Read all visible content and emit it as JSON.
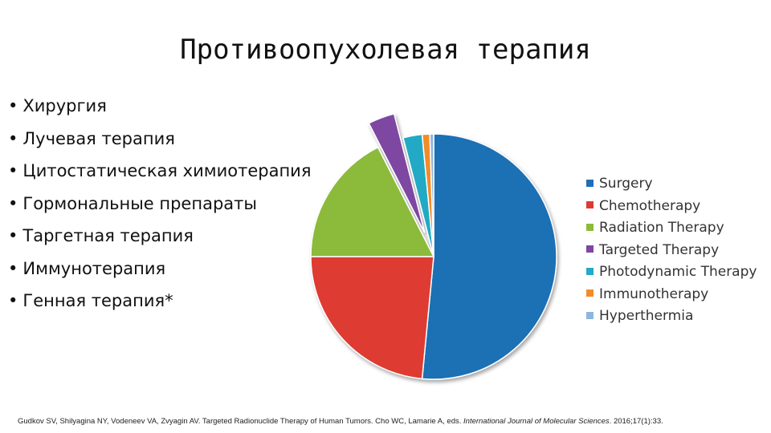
{
  "slide": {
    "title": "Противоопухолевая терапия",
    "bullets": [
      "Хирургия",
      "Лучевая терапия",
      "Цитостатическая химиотерапия",
      "Гормональные препараты",
      "Таргетная терапия",
      "Иммунотерапия",
      "Генная терапия*"
    ],
    "citation": {
      "authors": "Gudkov SV, Shilyagina NY, Vodeneev VA, Zvyagin AV. Targeted Radionuclide Therapy of Human Tumors. Cho WC, Lamarie A, eds. ",
      "journal": "International Journal of Molecular Sciences",
      "details": ". 2016;17(1):33."
    }
  },
  "chart_data": {
    "type": "pie",
    "title": "",
    "legend_position": "right",
    "exploded": [
      "Targeted Therapy"
    ],
    "slices": [
      {
        "label": "Surgery",
        "value": 51.5,
        "color": "#1f6fb4"
      },
      {
        "label": "Chemotherapy",
        "value": 23.5,
        "color": "#de3a33"
      },
      {
        "label": "Radiation Therapy",
        "value": 17.5,
        "color": "#8cba3b"
      },
      {
        "label": "Targeted Therapy",
        "value": 3.5,
        "color": "#7d47a2"
      },
      {
        "label": "Photodynamic Therapy",
        "value": 2.5,
        "color": "#24a9c6"
      },
      {
        "label": "Immunotherapy",
        "value": 1.0,
        "color": "#f28c2a"
      },
      {
        "label": "Hyperthermia",
        "value": 0.5,
        "color": "#8fb5dc"
      }
    ]
  }
}
